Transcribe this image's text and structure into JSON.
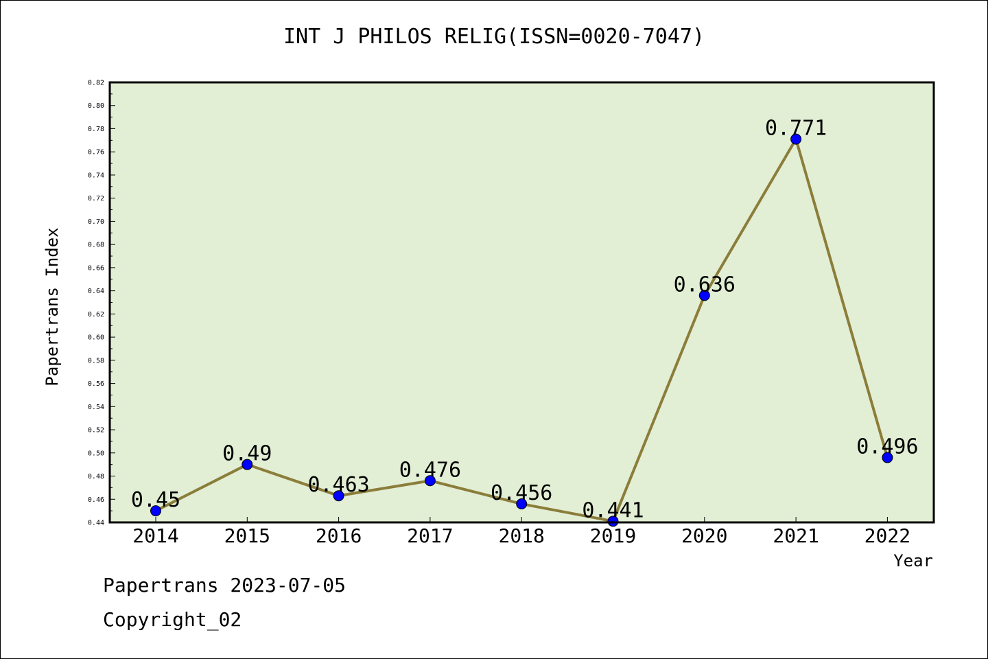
{
  "chart_data": {
    "type": "line",
    "title": "INT J PHILOS RELIG(ISSN=0020-7047)",
    "xlabel": "Year",
    "ylabel": "Papertrans Index",
    "categories": [
      "2014",
      "2015",
      "2016",
      "2017",
      "2018",
      "2019",
      "2020",
      "2021",
      "2022"
    ],
    "values": [
      0.45,
      0.49,
      0.463,
      0.476,
      0.456,
      0.441,
      0.636,
      0.771,
      0.496
    ],
    "value_labels": [
      "0.45",
      "0.49",
      "0.463",
      "0.476",
      "0.456",
      "0.441",
      "0.636",
      "0.771",
      "0.496"
    ],
    "ylim": [
      0.44,
      0.82
    ],
    "yticks": [
      "0.44",
      "0.46",
      "0.48",
      "0.50",
      "0.52",
      "0.54",
      "0.56",
      "0.58",
      "0.60",
      "0.62",
      "0.64",
      "0.66",
      "0.68",
      "0.70",
      "0.72",
      "0.74",
      "0.76",
      "0.78",
      "0.80",
      "0.82"
    ],
    "grid": false,
    "line_color": "#8b7d3a",
    "marker_color": "#0000ff",
    "plot_background": "#e2efd5"
  },
  "footer": {
    "date_line": "Papertrans 2023-07-05",
    "copyright_line": "Copyright_02"
  }
}
